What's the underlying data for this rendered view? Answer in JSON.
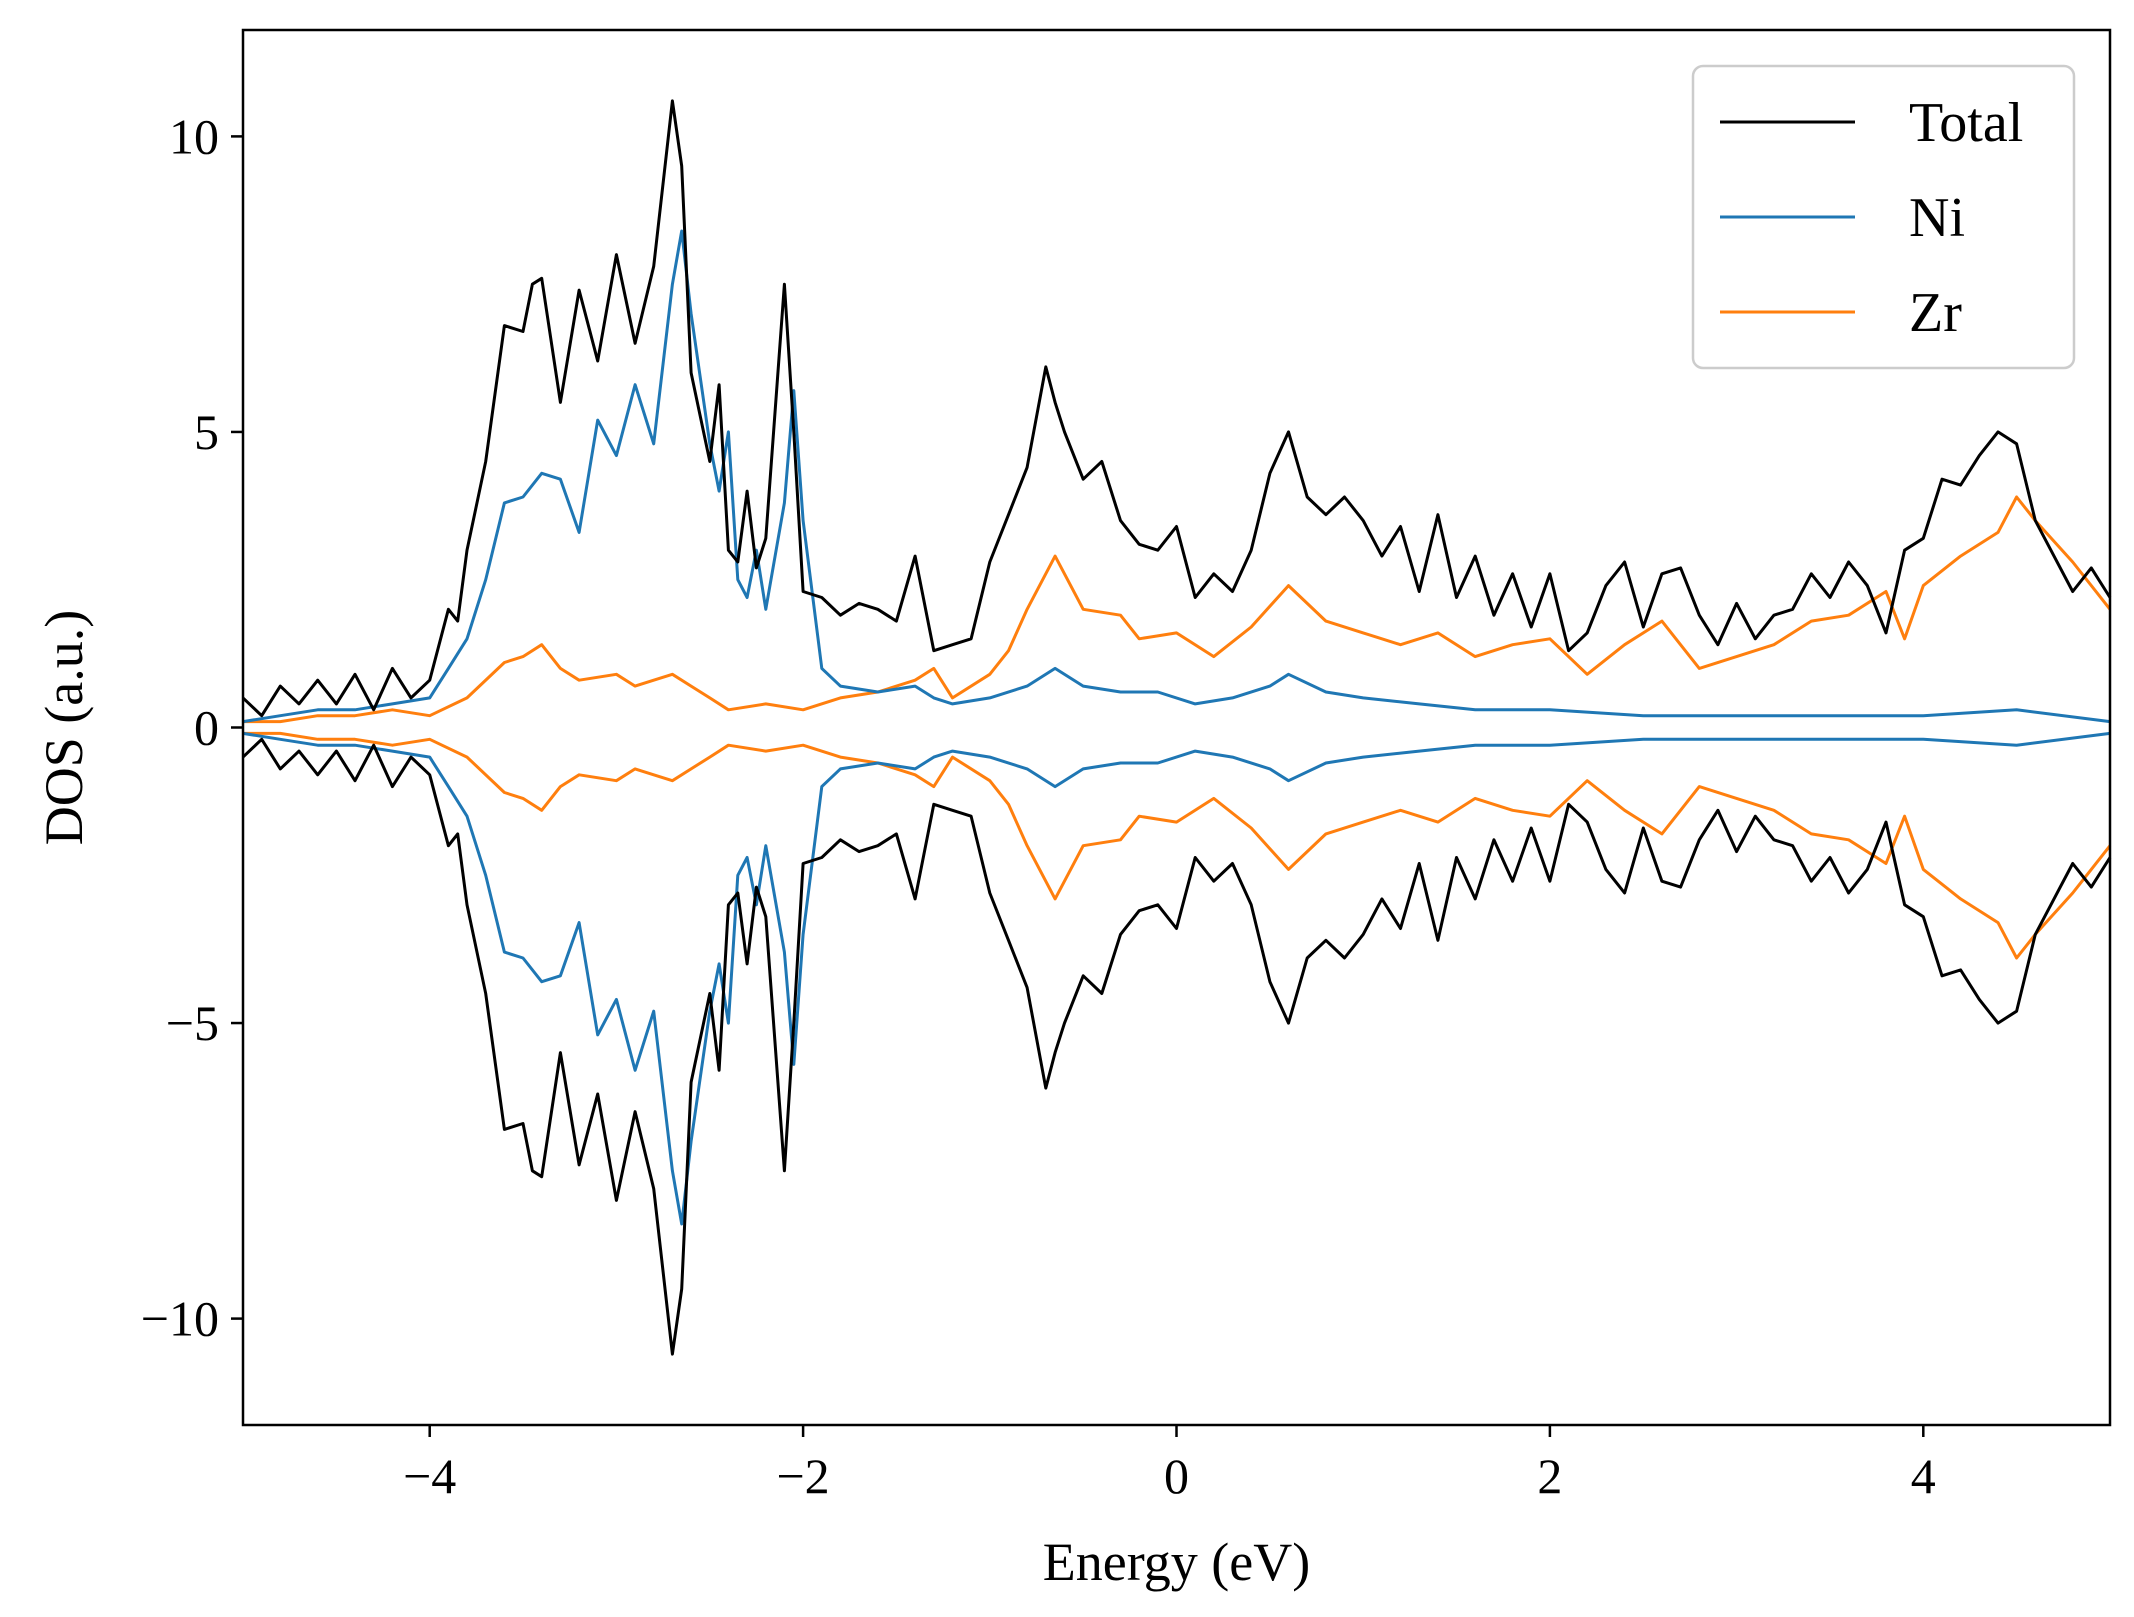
{
  "chart_data": {
    "type": "line",
    "title": "",
    "xlabel": "Energy (eV)",
    "ylabel": "DOS (a.u.)",
    "xlim": [
      -5,
      5
    ],
    "ylim": [
      -11.8,
      11.8
    ],
    "xticks": [
      -4,
      -2,
      0,
      2,
      4
    ],
    "xtick_labels": [
      "−4",
      "−2",
      "0",
      "2",
      "4"
    ],
    "yticks": [
      -10,
      -5,
      0,
      5,
      10
    ],
    "ytick_labels": [
      "−10",
      "−5",
      "0",
      "5",
      "10"
    ],
    "grid": false,
    "legend_position": "top-right",
    "mirrored": true,
    "series": [
      {
        "name": "Total",
        "color": "#000000",
        "x": [
          -5.0,
          -4.9,
          -4.8,
          -4.7,
          -4.6,
          -4.5,
          -4.4,
          -4.3,
          -4.2,
          -4.1,
          -4.0,
          -3.9,
          -3.85,
          -3.8,
          -3.7,
          -3.6,
          -3.5,
          -3.45,
          -3.4,
          -3.3,
          -3.2,
          -3.1,
          -3.0,
          -2.9,
          -2.8,
          -2.7,
          -2.65,
          -2.6,
          -2.5,
          -2.45,
          -2.4,
          -2.35,
          -2.3,
          -2.25,
          -2.2,
          -2.1,
          -2.05,
          -2.0,
          -1.9,
          -1.8,
          -1.7,
          -1.6,
          -1.5,
          -1.4,
          -1.3,
          -1.2,
          -1.1,
          -1.0,
          -0.9,
          -0.8,
          -0.7,
          -0.65,
          -0.6,
          -0.5,
          -0.4,
          -0.3,
          -0.2,
          -0.1,
          0.0,
          0.1,
          0.2,
          0.3,
          0.4,
          0.5,
          0.6,
          0.7,
          0.8,
          0.9,
          1.0,
          1.1,
          1.2,
          1.3,
          1.4,
          1.5,
          1.6,
          1.7,
          1.8,
          1.9,
          2.0,
          2.1,
          2.2,
          2.3,
          2.4,
          2.5,
          2.6,
          2.7,
          2.8,
          2.9,
          3.0,
          3.1,
          3.2,
          3.3,
          3.4,
          3.5,
          3.6,
          3.7,
          3.8,
          3.9,
          4.0,
          4.1,
          4.2,
          4.3,
          4.4,
          4.5,
          4.6,
          4.7,
          4.8,
          4.9,
          5.0
        ],
        "values": [
          0.5,
          0.2,
          0.7,
          0.4,
          0.8,
          0.4,
          0.9,
          0.3,
          1.0,
          0.5,
          0.8,
          2.0,
          1.8,
          3.0,
          4.5,
          6.8,
          6.7,
          7.5,
          7.6,
          5.5,
          7.4,
          6.2,
          8.0,
          6.5,
          7.8,
          10.6,
          9.5,
          6.0,
          4.5,
          5.8,
          3.0,
          2.8,
          4.0,
          2.7,
          3.2,
          7.5,
          5.0,
          2.3,
          2.2,
          1.9,
          2.1,
          2.0,
          1.8,
          2.9,
          1.3,
          1.4,
          1.5,
          2.8,
          3.6,
          4.4,
          6.1,
          5.5,
          5.0,
          4.2,
          4.5,
          3.5,
          3.1,
          3.0,
          3.4,
          2.2,
          2.6,
          2.3,
          3.0,
          4.3,
          5.0,
          3.9,
          3.6,
          3.9,
          3.5,
          2.9,
          3.4,
          2.3,
          3.6,
          2.2,
          2.9,
          1.9,
          2.6,
          1.7,
          2.6,
          1.3,
          1.6,
          2.4,
          2.8,
          1.7,
          2.6,
          2.7,
          1.9,
          1.4,
          2.1,
          1.5,
          1.9,
          2.0,
          2.6,
          2.2,
          2.8,
          2.4,
          1.6,
          3.0,
          3.2,
          4.2,
          4.1,
          4.6,
          5.0,
          4.8,
          3.5,
          2.9,
          2.3,
          2.7,
          2.2
        ]
      },
      {
        "name": "Ni",
        "color": "#1f77b4",
        "x": [
          -5.0,
          -4.8,
          -4.6,
          -4.4,
          -4.2,
          -4.0,
          -3.9,
          -3.8,
          -3.7,
          -3.6,
          -3.5,
          -3.4,
          -3.3,
          -3.2,
          -3.1,
          -3.0,
          -2.9,
          -2.8,
          -2.7,
          -2.65,
          -2.6,
          -2.5,
          -2.45,
          -2.4,
          -2.35,
          -2.3,
          -2.25,
          -2.2,
          -2.1,
          -2.05,
          -2.0,
          -1.9,
          -1.8,
          -1.6,
          -1.4,
          -1.3,
          -1.2,
          -1.0,
          -0.8,
          -0.65,
          -0.5,
          -0.3,
          -0.1,
          0.1,
          0.3,
          0.5,
          0.6,
          0.8,
          1.0,
          1.3,
          1.6,
          2.0,
          2.5,
          3.0,
          3.5,
          4.0,
          4.5,
          5.0
        ],
        "values": [
          0.1,
          0.2,
          0.3,
          0.3,
          0.4,
          0.5,
          1.0,
          1.5,
          2.5,
          3.8,
          3.9,
          4.3,
          4.2,
          3.3,
          5.2,
          4.6,
          5.8,
          4.8,
          7.5,
          8.4,
          7.0,
          4.8,
          4.0,
          5.0,
          2.5,
          2.2,
          3.0,
          2.0,
          3.8,
          5.7,
          3.5,
          1.0,
          0.7,
          0.6,
          0.7,
          0.5,
          0.4,
          0.5,
          0.7,
          1.0,
          0.7,
          0.6,
          0.6,
          0.4,
          0.5,
          0.7,
          0.9,
          0.6,
          0.5,
          0.4,
          0.3,
          0.3,
          0.2,
          0.2,
          0.2,
          0.2,
          0.3,
          0.1
        ]
      },
      {
        "name": "Zr",
        "color": "#ff7f0e",
        "x": [
          -5.0,
          -4.8,
          -4.6,
          -4.4,
          -4.2,
          -4.0,
          -3.8,
          -3.6,
          -3.5,
          -3.4,
          -3.3,
          -3.2,
          -3.0,
          -2.9,
          -2.8,
          -2.7,
          -2.6,
          -2.5,
          -2.4,
          -2.2,
          -2.0,
          -1.8,
          -1.6,
          -1.4,
          -1.3,
          -1.2,
          -1.0,
          -0.9,
          -0.8,
          -0.65,
          -0.5,
          -0.3,
          -0.2,
          0.0,
          0.2,
          0.4,
          0.6,
          0.8,
          1.0,
          1.2,
          1.4,
          1.6,
          1.8,
          2.0,
          2.2,
          2.4,
          2.6,
          2.8,
          3.0,
          3.2,
          3.4,
          3.6,
          3.8,
          3.9,
          4.0,
          4.2,
          4.4,
          4.5,
          4.6,
          4.8,
          5.0
        ],
        "values": [
          0.1,
          0.1,
          0.2,
          0.2,
          0.3,
          0.2,
          0.5,
          1.1,
          1.2,
          1.4,
          1.0,
          0.8,
          0.9,
          0.7,
          0.8,
          0.9,
          0.7,
          0.5,
          0.3,
          0.4,
          0.3,
          0.5,
          0.6,
          0.8,
          1.0,
          0.5,
          0.9,
          1.3,
          2.0,
          2.9,
          2.0,
          1.9,
          1.5,
          1.6,
          1.2,
          1.7,
          2.4,
          1.8,
          1.6,
          1.4,
          1.6,
          1.2,
          1.4,
          1.5,
          0.9,
          1.4,
          1.8,
          1.0,
          1.2,
          1.4,
          1.8,
          1.9,
          2.3,
          1.5,
          2.4,
          2.9,
          3.3,
          3.9,
          3.5,
          2.8,
          2.0
        ]
      }
    ]
  }
}
